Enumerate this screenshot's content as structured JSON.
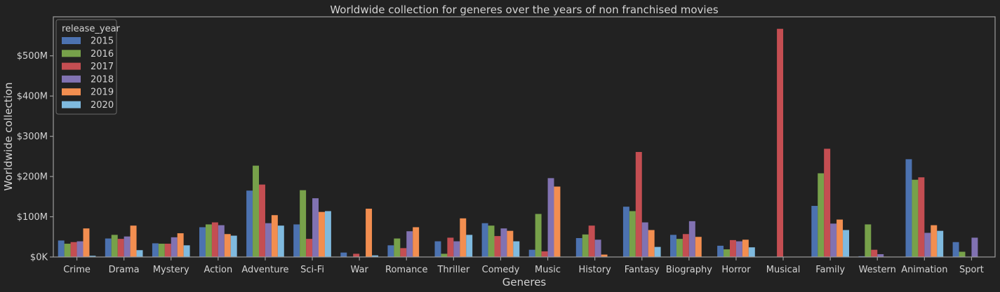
{
  "chart_data": {
    "type": "bar",
    "title": "Worldwide collection for generes over the years of non franchised movies",
    "xlabel": "Generes",
    "ylabel": "Worldwide collection",
    "ylim": [
      0,
      600
    ],
    "value_unit": "millions USD",
    "yticks": [
      0,
      100,
      200,
      300,
      400,
      500
    ],
    "ytick_labels": [
      "$0K",
      "$100M",
      "$200M",
      "$300M",
      "$400M",
      "$500M"
    ],
    "legend": {
      "title": "release_year",
      "placement": "top-left"
    },
    "categories": [
      "Crime",
      "Drama",
      "Mystery",
      "Action",
      "Adventure",
      "Sci-Fi",
      "War",
      "Romance",
      "Thriller",
      "Comedy",
      "Music",
      "History",
      "Fantasy",
      "Biography",
      "Horror",
      "Musical",
      "Family",
      "Western",
      "Animation",
      "Sport"
    ],
    "series": [
      {
        "name": "2015",
        "color": "#4c72b0",
        "values": [
          41,
          46,
          34,
          74,
          165,
          81,
          11,
          29,
          39,
          84,
          18,
          47,
          125,
          55,
          28,
          null,
          127,
          2,
          243,
          37
        ]
      },
      {
        "name": "2016",
        "color": "#77a14a",
        "values": [
          33,
          55,
          33,
          81,
          227,
          166,
          null,
          46,
          8,
          78,
          107,
          56,
          114,
          45,
          19,
          null,
          208,
          81,
          192,
          13
        ]
      },
      {
        "name": "2017",
        "color": "#c44e52",
        "values": [
          37,
          45,
          33,
          86,
          180,
          45,
          8,
          22,
          48,
          52,
          14,
          78,
          261,
          57,
          42,
          567,
          269,
          18,
          198,
          null
        ]
      },
      {
        "name": "2018",
        "color": "#8172b2",
        "values": [
          39,
          51,
          49,
          79,
          84,
          146,
          1,
          64,
          39,
          71,
          196,
          43,
          86,
          89,
          39,
          null,
          83,
          7,
          60,
          48
        ]
      },
      {
        "name": "2019",
        "color": "#f28e50",
        "values": [
          71,
          78,
          59,
          57,
          104,
          112,
          120,
          74,
          96,
          65,
          175,
          6,
          67,
          50,
          43,
          null,
          93,
          1,
          79,
          null
        ]
      },
      {
        "name": "2020",
        "color": "#7fbadf",
        "values": [
          3,
          17,
          29,
          53,
          78,
          114,
          4,
          null,
          55,
          39,
          null,
          null,
          25,
          null,
          24,
          null,
          67,
          null,
          65,
          null
        ]
      }
    ],
    "grid": false,
    "colors": {
      "background": "#222222",
      "axis": "#9c9c9c",
      "text": "#d3d3d3"
    }
  }
}
